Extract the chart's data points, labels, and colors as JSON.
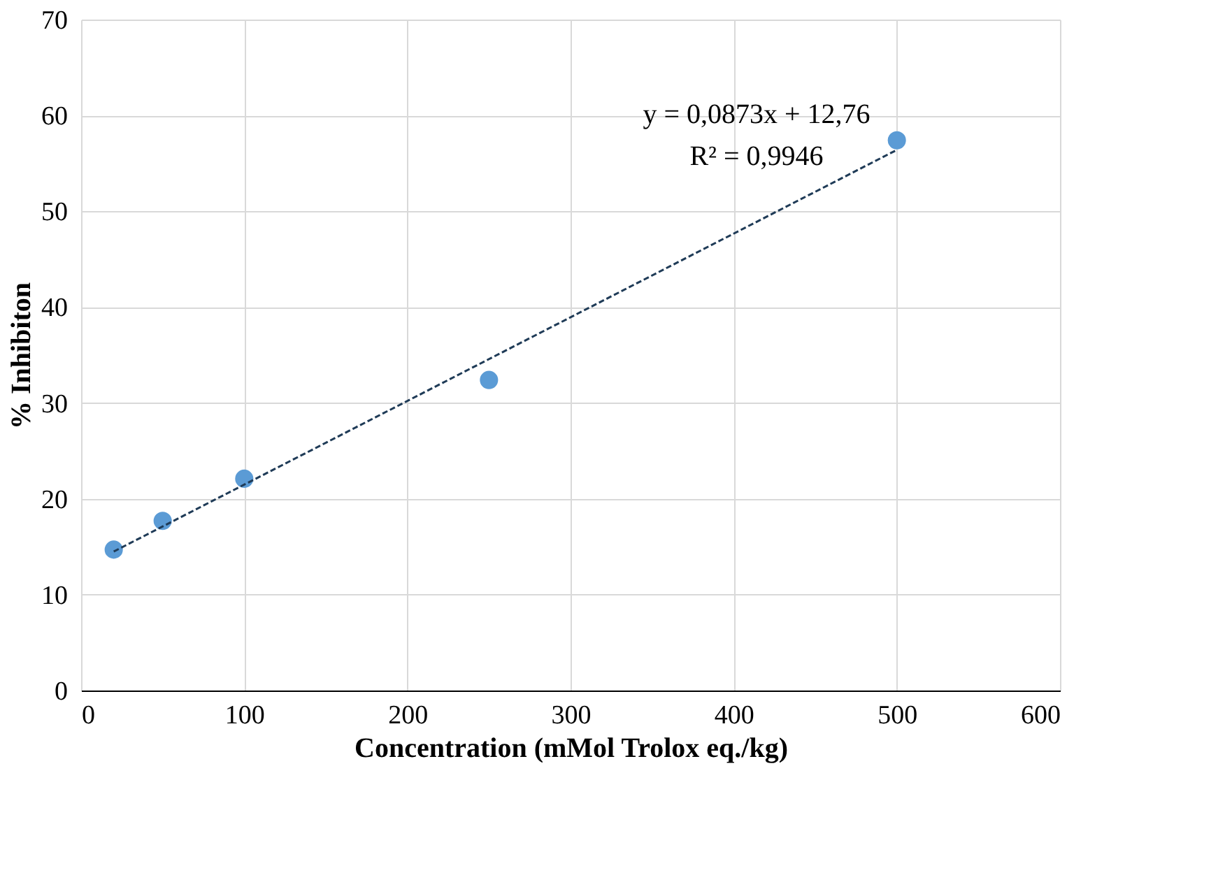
{
  "chart_data": {
    "type": "scatter",
    "xlabel": "Concentration (mMol Trolox eq./kg)",
    "ylabel": "% Inhibiton",
    "x": [
      20,
      50,
      100,
      250,
      500
    ],
    "series": [
      {
        "color": "#5b9bd5",
        "values": [
          14.7,
          17.7,
          22.1,
          32.4,
          57.4
        ],
        "marker": "circle"
      },
      {
        "type": "line",
        "color": "#1f3b57",
        "x": [
          20,
          500
        ],
        "values": [
          14.5,
          56.4
        ],
        "line_style": "dashed"
      }
    ],
    "annotations": [
      "y = 0,0873x + 12,76",
      "R² = 0,9946"
    ],
    "xlim": [
      0,
      600
    ],
    "xticks": [
      0,
      100,
      200,
      300,
      400,
      500,
      600
    ],
    "ylim": [
      0,
      70
    ],
    "yticks": [
      0,
      10,
      20,
      30,
      40,
      50,
      60,
      70
    ],
    "grid": true,
    "legend": false
  }
}
